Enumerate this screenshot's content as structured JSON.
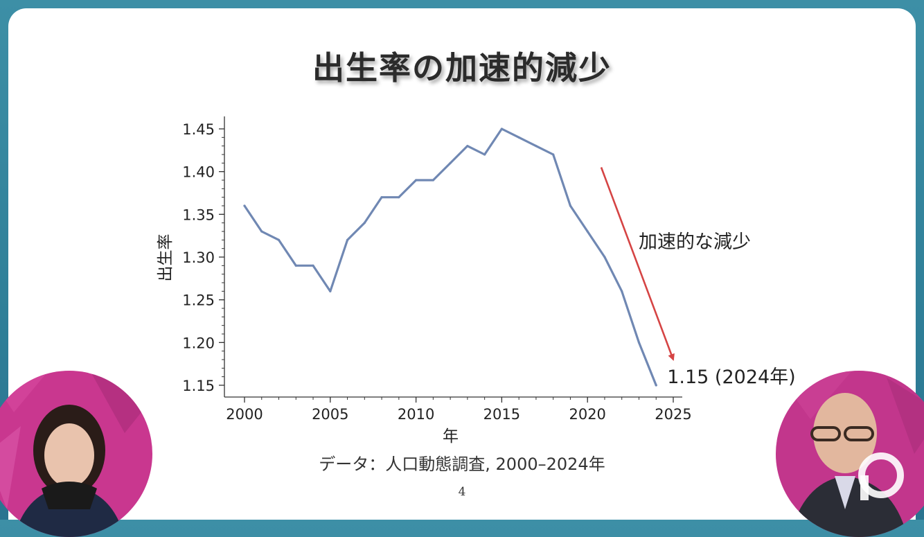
{
  "slide": {
    "title": "出生率の加速的減少",
    "source": "データ：人口動態調査, 2000–2024年",
    "page_number": "4"
  },
  "chart_data": {
    "type": "line",
    "xlabel": "年",
    "ylabel": "出生率",
    "xlim": [
      2000,
      2025
    ],
    "ylim": [
      1.15,
      1.45
    ],
    "x_ticks": [
      "2000",
      "2005",
      "2010",
      "2015",
      "2020",
      "2025"
    ],
    "y_ticks": [
      "1.15",
      "1.20",
      "1.25",
      "1.30",
      "1.35",
      "1.40",
      "1.45"
    ],
    "x": [
      2000,
      2001,
      2002,
      2003,
      2004,
      2005,
      2006,
      2007,
      2008,
      2009,
      2010,
      2011,
      2012,
      2013,
      2014,
      2015,
      2016,
      2017,
      2018,
      2019,
      2020,
      2021,
      2022,
      2023,
      2024
    ],
    "series": [
      {
        "values": [
          1.36,
          1.33,
          1.32,
          1.29,
          1.29,
          1.26,
          1.32,
          1.34,
          1.37,
          1.37,
          1.39,
          1.39,
          1.41,
          1.43,
          1.42,
          1.45,
          1.44,
          1.43,
          1.42,
          1.36,
          1.33,
          1.3,
          1.26,
          1.2,
          1.15
        ],
        "color": "#7088b3"
      }
    ],
    "annotations": [
      {
        "text": "加速的な減少",
        "arrow_from": [
          2020.8,
          1.405
        ],
        "arrow_to": [
          2025,
          1.18
        ],
        "color": "#d54444"
      },
      {
        "text": "1.15 (2024年)",
        "x": 2024,
        "y": 1.15
      }
    ],
    "grid": false,
    "legend": "none"
  },
  "overlay": {
    "left_person": "person-avatar",
    "right_person": "person-avatar",
    "watermark": "p-logo-icon"
  }
}
